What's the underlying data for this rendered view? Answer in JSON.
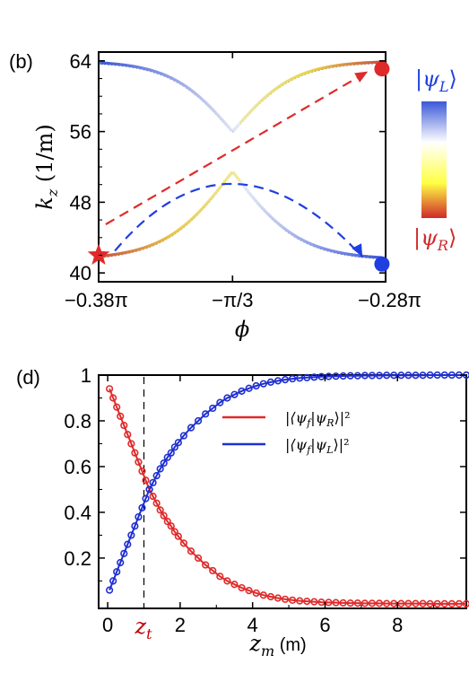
{
  "panels": {
    "top_label": "(b)",
    "bottom_label": "(d)"
  },
  "chart_data": [
    {
      "panel": "(b)",
      "type": "line",
      "xlabel": "ϕ",
      "ylabel": "k",
      "ylabel_sub": "z",
      "ylabel_unit": " (1/m)",
      "xlim": [
        -1.1938,
        -0.8796
      ],
      "ylim": [
        39,
        65
      ],
      "xtick_values": [
        -1.1938,
        -1.0472,
        -0.8796
      ],
      "xtick_labels": [
        "−0.38π",
        "−π/3",
        "−0.28π"
      ],
      "ytick_values": [
        40,
        48,
        56,
        64
      ],
      "ytick_labels": [
        "40",
        "48",
        "56",
        "64"
      ],
      "colors": {
        "psi_L": "#3b58d8",
        "psi_R": "#e02a2a",
        "mid": "#ffff66"
      },
      "colorbar": {
        "top_label": "|ψ",
        "top_sub": "L",
        "bottom_label": "|ψ",
        "bottom_sub": "R",
        "close": "⟩"
      },
      "bands": {
        "upper": {
          "k0": 56,
          "A": 8,
          "w": 0.0675
        },
        "lower": {
          "k0": 51.5,
          "A": -10,
          "w": 0.0738
        }
      },
      "markers": [
        {
          "shape": "circle",
          "color": "#e02a2a",
          "phi": -0.8836,
          "kz": 63.1
        },
        {
          "shape": "circle",
          "color": "#1f3fe0",
          "phi": -0.8836,
          "kz": 41.0
        },
        {
          "shape": "star",
          "color": "#e02a2a",
          "phi": -1.1938,
          "kz": 42.0
        }
      ],
      "arrows": [
        {
          "color": "#e02a2a",
          "from": [
            -1.186,
            45.5
          ],
          "to": [
            -0.899,
            62.8
          ]
        },
        {
          "color": "#1f3fe0",
          "from": [
            -1.176,
            42.5
          ],
          "ctrl": [
            -1.05,
            58.0
          ],
          "to": [
            -0.905,
            41.8
          ]
        }
      ]
    },
    {
      "panel": "(d)",
      "type": "line",
      "xlabel": "z",
      "xlabel_sub": "m",
      "xlabel_unit": " (m)",
      "xlim": [
        -0.25,
        9.9
      ],
      "ylim": [
        -0.02,
        1.0
      ],
      "xtick_values": [
        0,
        2,
        4,
        6,
        8
      ],
      "xtick_labels": [
        "0",
        "2",
        "4",
        "6",
        "8"
      ],
      "ytick_values": [
        0.2,
        0.4,
        0.6,
        0.8,
        1.0
      ],
      "ytick_labels": [
        "0.2",
        "0.4",
        "0.6",
        "0.8",
        "1"
      ],
      "vline": {
        "x": 1.0,
        "label": "z",
        "label_sub": "t"
      },
      "legend": "top-right",
      "series": [
        {
          "name": "|⟨ψf|ψR⟩|²",
          "legend_pre": "|⟨ψ",
          "legend_sub1": "f",
          "legend_mid": "|ψ",
          "legend_sub2": "R",
          "legend_post": "⟩|²",
          "color": "#e02a2a",
          "x": [
            0.05,
            0.15,
            0.25,
            0.35,
            0.45,
            0.55,
            0.65,
            0.75,
            0.85,
            0.95,
            1.05,
            1.15,
            1.25,
            1.35,
            1.45,
            1.55,
            1.65,
            1.75,
            1.85,
            1.95,
            2.1,
            2.3,
            2.5,
            2.7,
            2.9,
            3.1,
            3.3,
            3.5,
            3.7,
            3.9,
            4.1,
            4.3,
            4.5,
            4.7,
            4.9,
            5.1,
            5.3,
            5.5,
            5.7,
            5.9,
            6.1,
            6.3,
            6.5,
            6.7,
            6.9,
            7.1,
            7.3,
            7.5,
            7.7,
            7.9,
            8.1,
            8.3,
            8.5,
            8.7,
            8.9,
            9.1,
            9.3,
            9.5,
            9.7,
            9.9
          ],
          "y": [
            0.94,
            0.9,
            0.86,
            0.82,
            0.78,
            0.74,
            0.7,
            0.66,
            0.62,
            0.58,
            0.54,
            0.5,
            0.47,
            0.44,
            0.41,
            0.385,
            0.36,
            0.34,
            0.315,
            0.295,
            0.265,
            0.23,
            0.2,
            0.17,
            0.145,
            0.12,
            0.1,
            0.085,
            0.07,
            0.058,
            0.047,
            0.038,
            0.031,
            0.025,
            0.02,
            0.016,
            0.013,
            0.011,
            0.009,
            0.007,
            0.006,
            0.005,
            0.004,
            0.003,
            0.003,
            0.002,
            0.002,
            0.002,
            0.001,
            0.001,
            0.001,
            0.001,
            0.001,
            0.001,
            0.0,
            0.0,
            0.0,
            0.0,
            0.0,
            0.0
          ]
        },
        {
          "name": "|⟨ψf|ψL⟩|²",
          "legend_pre": "|⟨ψ",
          "legend_sub1": "f",
          "legend_mid": "|ψ",
          "legend_sub2": "L",
          "legend_post": "⟩|²",
          "color": "#1f2fd0",
          "x": [
            0.05,
            0.15,
            0.25,
            0.35,
            0.45,
            0.55,
            0.65,
            0.75,
            0.85,
            0.95,
            1.05,
            1.15,
            1.25,
            1.35,
            1.45,
            1.55,
            1.65,
            1.75,
            1.85,
            1.95,
            2.1,
            2.3,
            2.5,
            2.7,
            2.9,
            3.1,
            3.3,
            3.5,
            3.7,
            3.9,
            4.1,
            4.3,
            4.5,
            4.7,
            4.9,
            5.1,
            5.3,
            5.5,
            5.7,
            5.9,
            6.1,
            6.3,
            6.5,
            6.7,
            6.9,
            7.1,
            7.3,
            7.5,
            7.7,
            7.9,
            8.1,
            8.3,
            8.5,
            8.7,
            8.9,
            9.1,
            9.3,
            9.5,
            9.7,
            9.9
          ],
          "y": [
            0.06,
            0.1,
            0.14,
            0.18,
            0.22,
            0.26,
            0.3,
            0.34,
            0.38,
            0.42,
            0.46,
            0.5,
            0.53,
            0.56,
            0.59,
            0.615,
            0.64,
            0.66,
            0.685,
            0.705,
            0.735,
            0.77,
            0.8,
            0.83,
            0.855,
            0.88,
            0.9,
            0.915,
            0.93,
            0.942,
            0.953,
            0.962,
            0.969,
            0.975,
            0.98,
            0.984,
            0.987,
            0.989,
            0.991,
            0.993,
            0.994,
            0.995,
            0.996,
            0.997,
            0.997,
            0.998,
            0.998,
            0.998,
            0.999,
            0.999,
            0.999,
            0.999,
            0.999,
            0.999,
            1.0,
            1.0,
            1.0,
            1.0,
            1.0,
            1.0
          ]
        }
      ]
    }
  ]
}
